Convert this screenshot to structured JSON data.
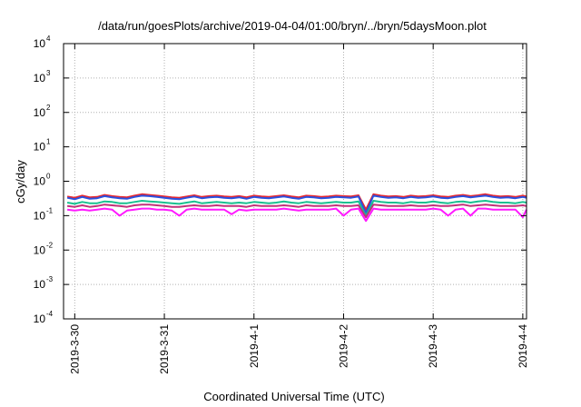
{
  "chart_data": {
    "type": "line",
    "title": "/data/run/goesPlots/archive/2019-04-04/01:00/bryn/../bryn/5daysMoon.plot",
    "xlabel": "Coordinated Universal Time (UTC)",
    "ylabel": "cGy/day",
    "yscale": "log",
    "ylim": [
      0.0001,
      10000
    ],
    "y_ticks": [
      {
        "base": "10",
        "exp": "-4",
        "value": 0.0001
      },
      {
        "base": "10",
        "exp": "-3",
        "value": 0.001
      },
      {
        "base": "10",
        "exp": "-2",
        "value": 0.01
      },
      {
        "base": "10",
        "exp": "-1",
        "value": 0.1
      },
      {
        "base": "10",
        "exp": "0",
        "value": 1
      },
      {
        "base": "10",
        "exp": "1",
        "value": 10
      },
      {
        "base": "10",
        "exp": "2",
        "value": 100
      },
      {
        "base": "10",
        "exp": "3",
        "value": 1000
      },
      {
        "base": "10",
        "exp": "4",
        "value": 10000
      }
    ],
    "xlim": [
      "2019-03-29T21:00",
      "2019-04-04T01:00"
    ],
    "x_ticks": [
      {
        "label": "2019-3-30",
        "value": "2019-03-30T00:00"
      },
      {
        "label": "2019-3-31",
        "value": "2019-03-31T00:00"
      },
      {
        "label": "2019-4-1",
        "value": "2019-04-01T00:00"
      },
      {
        "label": "2019-4-2",
        "value": "2019-04-02T00:00"
      },
      {
        "label": "2019-4-3",
        "value": "2019-04-03T00:00"
      },
      {
        "label": "2019-4-4",
        "value": "2019-04-04T00:00"
      }
    ],
    "grid": true,
    "legend": "none",
    "x": [
      "2019-03-29T22:00",
      "2019-03-30T00:00",
      "2019-03-30T02:00",
      "2019-03-30T04:00",
      "2019-03-30T06:00",
      "2019-03-30T08:00",
      "2019-03-30T10:00",
      "2019-03-30T12:00",
      "2019-03-30T14:00",
      "2019-03-30T16:00",
      "2019-03-30T18:00",
      "2019-03-30T20:00",
      "2019-03-30T22:00",
      "2019-03-31T00:00",
      "2019-03-31T02:00",
      "2019-03-31T04:00",
      "2019-03-31T06:00",
      "2019-03-31T08:00",
      "2019-03-31T10:00",
      "2019-03-31T12:00",
      "2019-03-31T14:00",
      "2019-03-31T16:00",
      "2019-03-31T18:00",
      "2019-03-31T20:00",
      "2019-03-31T22:00",
      "2019-04-01T00:00",
      "2019-04-01T02:00",
      "2019-04-01T04:00",
      "2019-04-01T06:00",
      "2019-04-01T08:00",
      "2019-04-01T10:00",
      "2019-04-01T12:00",
      "2019-04-01T14:00",
      "2019-04-01T16:00",
      "2019-04-01T18:00",
      "2019-04-01T20:00",
      "2019-04-01T22:00",
      "2019-04-02T00:00",
      "2019-04-02T02:00",
      "2019-04-02T04:00",
      "2019-04-02T06:00",
      "2019-04-02T08:00",
      "2019-04-02T10:00",
      "2019-04-02T12:00",
      "2019-04-02T14:00",
      "2019-04-02T16:00",
      "2019-04-02T18:00",
      "2019-04-02T20:00",
      "2019-04-02T22:00",
      "2019-04-03T00:00",
      "2019-04-03T02:00",
      "2019-04-03T04:00",
      "2019-04-03T06:00",
      "2019-04-03T08:00",
      "2019-04-03T10:00",
      "2019-04-03T12:00",
      "2019-04-03T14:00",
      "2019-04-03T16:00",
      "2019-04-03T18:00",
      "2019-04-03T20:00",
      "2019-04-03T22:00",
      "2019-04-04T00:00",
      "2019-04-04T01:00"
    ],
    "series": [
      {
        "color": "#e8262e",
        "values": [
          0.36,
          0.33,
          0.38,
          0.34,
          0.35,
          0.4,
          0.37,
          0.35,
          0.34,
          0.38,
          0.42,
          0.4,
          0.38,
          0.36,
          0.34,
          0.33,
          0.36,
          0.39,
          0.35,
          0.37,
          0.38,
          0.36,
          0.35,
          0.37,
          0.34,
          0.38,
          0.36,
          0.35,
          0.37,
          0.39,
          0.36,
          0.34,
          0.38,
          0.37,
          0.35,
          0.36,
          0.38,
          0.37,
          0.36,
          0.39,
          0.15,
          0.42,
          0.38,
          0.36,
          0.37,
          0.35,
          0.38,
          0.36,
          0.37,
          0.39,
          0.36,
          0.35,
          0.38,
          0.4,
          0.37,
          0.39,
          0.42,
          0.38,
          0.36,
          0.37,
          0.35,
          0.38,
          0.36
        ]
      },
      {
        "color": "#2a52e0",
        "values": [
          0.33,
          0.3,
          0.35,
          0.31,
          0.32,
          0.37,
          0.34,
          0.32,
          0.31,
          0.35,
          0.38,
          0.37,
          0.35,
          0.33,
          0.31,
          0.3,
          0.33,
          0.36,
          0.32,
          0.34,
          0.35,
          0.33,
          0.32,
          0.34,
          0.31,
          0.35,
          0.33,
          0.32,
          0.34,
          0.36,
          0.33,
          0.31,
          0.35,
          0.34,
          0.32,
          0.33,
          0.35,
          0.34,
          0.33,
          0.36,
          0.12,
          0.38,
          0.35,
          0.33,
          0.34,
          0.32,
          0.35,
          0.33,
          0.34,
          0.36,
          0.33,
          0.32,
          0.35,
          0.37,
          0.34,
          0.36,
          0.38,
          0.35,
          0.33,
          0.34,
          0.32,
          0.35,
          0.33
        ]
      },
      {
        "color": "#18c090",
        "values": [
          0.24,
          0.22,
          0.25,
          0.23,
          0.23,
          0.26,
          0.25,
          0.23,
          0.23,
          0.25,
          0.27,
          0.26,
          0.25,
          0.24,
          0.23,
          0.22,
          0.24,
          0.26,
          0.23,
          0.24,
          0.25,
          0.24,
          0.23,
          0.24,
          0.23,
          0.25,
          0.24,
          0.23,
          0.24,
          0.26,
          0.24,
          0.23,
          0.25,
          0.24,
          0.23,
          0.24,
          0.25,
          0.24,
          0.24,
          0.26,
          0.1,
          0.27,
          0.25,
          0.24,
          0.24,
          0.23,
          0.25,
          0.24,
          0.24,
          0.26,
          0.24,
          0.23,
          0.25,
          0.26,
          0.24,
          0.26,
          0.27,
          0.25,
          0.24,
          0.24,
          0.23,
          0.25,
          0.24
        ]
      },
      {
        "color": "#c2307a",
        "values": [
          0.19,
          0.18,
          0.2,
          0.18,
          0.19,
          0.21,
          0.2,
          0.19,
          0.18,
          0.2,
          0.21,
          0.21,
          0.2,
          0.19,
          0.18,
          0.18,
          0.19,
          0.2,
          0.19,
          0.19,
          0.2,
          0.19,
          0.19,
          0.19,
          0.18,
          0.2,
          0.19,
          0.19,
          0.19,
          0.2,
          0.19,
          0.18,
          0.2,
          0.19,
          0.19,
          0.19,
          0.2,
          0.19,
          0.19,
          0.2,
          0.09,
          0.21,
          0.2,
          0.19,
          0.19,
          0.19,
          0.2,
          0.19,
          0.19,
          0.2,
          0.19,
          0.19,
          0.2,
          0.21,
          0.19,
          0.2,
          0.21,
          0.2,
          0.19,
          0.19,
          0.19,
          0.2,
          0.19
        ]
      },
      {
        "color": "#ff1aff",
        "values": [
          0.15,
          0.14,
          0.15,
          0.14,
          0.15,
          0.16,
          0.15,
          0.1,
          0.14,
          0.15,
          0.16,
          0.16,
          0.15,
          0.15,
          0.14,
          0.1,
          0.15,
          0.16,
          0.15,
          0.15,
          0.15,
          0.15,
          0.11,
          0.15,
          0.14,
          0.15,
          0.15,
          0.15,
          0.15,
          0.16,
          0.15,
          0.14,
          0.15,
          0.15,
          0.15,
          0.15,
          0.16,
          0.1,
          0.15,
          0.16,
          0.07,
          0.16,
          0.15,
          0.15,
          0.15,
          0.15,
          0.15,
          0.15,
          0.15,
          0.16,
          0.15,
          0.1,
          0.15,
          0.16,
          0.1,
          0.16,
          0.16,
          0.15,
          0.15,
          0.15,
          0.15,
          0.09,
          0.15
        ]
      }
    ]
  }
}
